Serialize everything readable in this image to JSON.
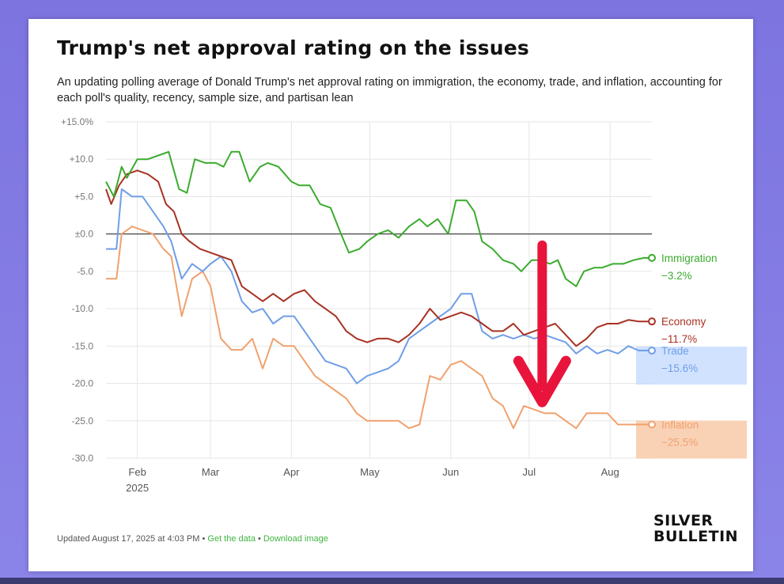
{
  "chart_data": {
    "type": "line",
    "title": "Trump's net approval rating on the issues",
    "subtitle": "An updating polling average of Donald Trump's net approval rating on immigration, the economy, trade, and inflation, accounting for each poll's quality, recency, sample size, and partisan lean",
    "ylim": [
      -30,
      15
    ],
    "y_ticks": [
      15,
      10,
      5,
      0,
      -5,
      -10,
      -15,
      -20,
      -25,
      -30
    ],
    "y_tick_labels": [
      "+15.0%",
      "+10.0",
      "+5.0",
      "±0.0",
      "-5.0",
      "-10.0",
      "-15.0",
      "-20.0",
      "-25.0",
      "-30.0"
    ],
    "x_ticks": [
      {
        "date": "2025-02-01",
        "label": "Feb",
        "sublabel": "2025"
      },
      {
        "date": "2025-03-01",
        "label": "Mar",
        "sublabel": ""
      },
      {
        "date": "2025-04-01",
        "label": "Apr",
        "sublabel": ""
      },
      {
        "date": "2025-05-01",
        "label": "May",
        "sublabel": ""
      },
      {
        "date": "2025-06-01",
        "label": "Jun",
        "sublabel": ""
      },
      {
        "date": "2025-07-01",
        "label": "Jul",
        "sublabel": ""
      },
      {
        "date": "2025-08-01",
        "label": "Aug",
        "sublabel": ""
      }
    ],
    "x_range": [
      "2025-01-20",
      "2025-08-17"
    ],
    "grid": true,
    "series": [
      {
        "name": "Immigration",
        "end_label": "Immigration",
        "end_value": "−3.2%",
        "color": "#3bab2e",
        "highlight": "",
        "points": [
          [
            "2025-01-20",
            7
          ],
          [
            "2025-01-23",
            5
          ],
          [
            "2025-01-26",
            9
          ],
          [
            "2025-01-28",
            7.5
          ],
          [
            "2025-02-01",
            10
          ],
          [
            "2025-02-05",
            10
          ],
          [
            "2025-02-09",
            10.5
          ],
          [
            "2025-02-13",
            11
          ],
          [
            "2025-02-17",
            6
          ],
          [
            "2025-02-20",
            5.5
          ],
          [
            "2025-02-23",
            10
          ],
          [
            "2025-02-27",
            9.5
          ],
          [
            "2025-03-03",
            9.5
          ],
          [
            "2025-03-06",
            9
          ],
          [
            "2025-03-09",
            11
          ],
          [
            "2025-03-12",
            11
          ],
          [
            "2025-03-16",
            7
          ],
          [
            "2025-03-20",
            9
          ],
          [
            "2025-03-23",
            9.5
          ],
          [
            "2025-03-27",
            9
          ],
          [
            "2025-04-01",
            7
          ],
          [
            "2025-04-04",
            6.5
          ],
          [
            "2025-04-08",
            6.5
          ],
          [
            "2025-04-12",
            4
          ],
          [
            "2025-04-16",
            3.5
          ],
          [
            "2025-04-20",
            0
          ],
          [
            "2025-04-23",
            -2.5
          ],
          [
            "2025-04-27",
            -2
          ],
          [
            "2025-04-30",
            -1
          ],
          [
            "2025-05-04",
            0
          ],
          [
            "2025-05-08",
            0.5
          ],
          [
            "2025-05-12",
            -0.5
          ],
          [
            "2025-05-16",
            1
          ],
          [
            "2025-05-20",
            2
          ],
          [
            "2025-05-23",
            1
          ],
          [
            "2025-05-27",
            2
          ],
          [
            "2025-05-31",
            0
          ],
          [
            "2025-06-03",
            4.5
          ],
          [
            "2025-06-07",
            4.5
          ],
          [
            "2025-06-10",
            3
          ],
          [
            "2025-06-13",
            -1
          ],
          [
            "2025-06-17",
            -2
          ],
          [
            "2025-06-21",
            -3.5
          ],
          [
            "2025-06-25",
            -4
          ],
          [
            "2025-06-28",
            -5
          ],
          [
            "2025-07-02",
            -3.5
          ],
          [
            "2025-07-05",
            -3.5
          ],
          [
            "2025-07-09",
            -4
          ],
          [
            "2025-07-12",
            -3.5
          ],
          [
            "2025-07-15",
            -6
          ],
          [
            "2025-07-19",
            -7
          ],
          [
            "2025-07-22",
            -5
          ],
          [
            "2025-07-26",
            -4.5
          ],
          [
            "2025-07-29",
            -4.5
          ],
          [
            "2025-08-02",
            -4
          ],
          [
            "2025-08-06",
            -4
          ],
          [
            "2025-08-10",
            -3.5
          ],
          [
            "2025-08-14",
            -3.2
          ],
          [
            "2025-08-17",
            -3.2
          ]
        ]
      },
      {
        "name": "Economy",
        "end_label": "Economy",
        "end_value": "−11.7%",
        "color": "#a83223",
        "highlight": "",
        "points": [
          [
            "2025-01-20",
            6
          ],
          [
            "2025-01-22",
            4
          ],
          [
            "2025-01-25",
            6.5
          ],
          [
            "2025-01-28",
            8
          ],
          [
            "2025-02-01",
            8.5
          ],
          [
            "2025-02-05",
            8
          ],
          [
            "2025-02-09",
            7
          ],
          [
            "2025-02-12",
            4
          ],
          [
            "2025-02-15",
            3
          ],
          [
            "2025-02-18",
            0
          ],
          [
            "2025-02-21",
            -1
          ],
          [
            "2025-02-25",
            -2
          ],
          [
            "2025-03-01",
            -2.5
          ],
          [
            "2025-03-05",
            -3
          ],
          [
            "2025-03-09",
            -3.5
          ],
          [
            "2025-03-13",
            -7
          ],
          [
            "2025-03-17",
            -8
          ],
          [
            "2025-03-21",
            -9
          ],
          [
            "2025-03-25",
            -8
          ],
          [
            "2025-03-29",
            -9
          ],
          [
            "2025-04-02",
            -8
          ],
          [
            "2025-04-06",
            -7.5
          ],
          [
            "2025-04-10",
            -9
          ],
          [
            "2025-04-14",
            -10
          ],
          [
            "2025-04-18",
            -11
          ],
          [
            "2025-04-22",
            -13
          ],
          [
            "2025-04-26",
            -14
          ],
          [
            "2025-04-30",
            -14.5
          ],
          [
            "2025-05-04",
            -14
          ],
          [
            "2025-05-08",
            -14
          ],
          [
            "2025-05-12",
            -14.5
          ],
          [
            "2025-05-16",
            -13.5
          ],
          [
            "2025-05-20",
            -12
          ],
          [
            "2025-05-24",
            -10
          ],
          [
            "2025-05-28",
            -11.5
          ],
          [
            "2025-06-01",
            -11
          ],
          [
            "2025-06-05",
            -10.5
          ],
          [
            "2025-06-09",
            -11
          ],
          [
            "2025-06-13",
            -12
          ],
          [
            "2025-06-17",
            -13
          ],
          [
            "2025-06-21",
            -13
          ],
          [
            "2025-06-25",
            -12
          ],
          [
            "2025-06-29",
            -13.5
          ],
          [
            "2025-07-03",
            -13
          ],
          [
            "2025-07-07",
            -12.5
          ],
          [
            "2025-07-11",
            -12
          ],
          [
            "2025-07-15",
            -13.5
          ],
          [
            "2025-07-19",
            -15
          ],
          [
            "2025-07-23",
            -14
          ],
          [
            "2025-07-27",
            -12.5
          ],
          [
            "2025-07-31",
            -12
          ],
          [
            "2025-08-04",
            -12
          ],
          [
            "2025-08-08",
            -11.5
          ],
          [
            "2025-08-12",
            -11.7
          ],
          [
            "2025-08-17",
            -11.7
          ]
        ]
      },
      {
        "name": "Trade",
        "end_label": "Trade",
        "end_value": "−15.6%",
        "color": "#6f9ee6",
        "highlight": "#c6dbff",
        "points": [
          [
            "2025-01-20",
            -2
          ],
          [
            "2025-01-24",
            -2
          ],
          [
            "2025-01-26",
            6
          ],
          [
            "2025-01-30",
            5
          ],
          [
            "2025-02-03",
            5
          ],
          [
            "2025-02-07",
            3
          ],
          [
            "2025-02-11",
            1
          ],
          [
            "2025-02-14",
            -1
          ],
          [
            "2025-02-18",
            -6
          ],
          [
            "2025-02-22",
            -4
          ],
          [
            "2025-02-26",
            -5
          ],
          [
            "2025-03-01",
            -4
          ],
          [
            "2025-03-05",
            -3
          ],
          [
            "2025-03-09",
            -5
          ],
          [
            "2025-03-13",
            -9
          ],
          [
            "2025-03-17",
            -10.5
          ],
          [
            "2025-03-21",
            -10
          ],
          [
            "2025-03-25",
            -12
          ],
          [
            "2025-03-29",
            -11
          ],
          [
            "2025-04-02",
            -11
          ],
          [
            "2025-04-06",
            -13
          ],
          [
            "2025-04-10",
            -15
          ],
          [
            "2025-04-14",
            -17
          ],
          [
            "2025-04-18",
            -17.5
          ],
          [
            "2025-04-22",
            -18
          ],
          [
            "2025-04-26",
            -20
          ],
          [
            "2025-04-30",
            -19
          ],
          [
            "2025-05-04",
            -18.5
          ],
          [
            "2025-05-08",
            -18
          ],
          [
            "2025-05-12",
            -17
          ],
          [
            "2025-05-16",
            -14
          ],
          [
            "2025-05-20",
            -13
          ],
          [
            "2025-05-24",
            -12
          ],
          [
            "2025-05-28",
            -11
          ],
          [
            "2025-06-01",
            -10
          ],
          [
            "2025-06-05",
            -8
          ],
          [
            "2025-06-09",
            -8
          ],
          [
            "2025-06-13",
            -13
          ],
          [
            "2025-06-17",
            -14
          ],
          [
            "2025-06-21",
            -13.5
          ],
          [
            "2025-06-25",
            -14
          ],
          [
            "2025-06-29",
            -13.5
          ],
          [
            "2025-07-03",
            -14
          ],
          [
            "2025-07-07",
            -13.5
          ],
          [
            "2025-07-11",
            -14
          ],
          [
            "2025-07-15",
            -14.5
          ],
          [
            "2025-07-19",
            -16
          ],
          [
            "2025-07-23",
            -15
          ],
          [
            "2025-07-27",
            -16
          ],
          [
            "2025-07-31",
            -15.5
          ],
          [
            "2025-08-04",
            -16
          ],
          [
            "2025-08-08",
            -15
          ],
          [
            "2025-08-12",
            -15.6
          ],
          [
            "2025-08-17",
            -15.6
          ]
        ]
      },
      {
        "name": "Inflation",
        "end_label": "Inflation",
        "end_value": "−25.5%",
        "color": "#f0a16d",
        "highlight": "#f7c7a4",
        "points": [
          [
            "2025-01-20",
            -6
          ],
          [
            "2025-01-24",
            -6
          ],
          [
            "2025-01-26",
            0
          ],
          [
            "2025-01-30",
            1
          ],
          [
            "2025-02-03",
            0.5
          ],
          [
            "2025-02-07",
            0
          ],
          [
            "2025-02-11",
            -2
          ],
          [
            "2025-02-14",
            -3
          ],
          [
            "2025-02-18",
            -11
          ],
          [
            "2025-02-22",
            -6
          ],
          [
            "2025-02-26",
            -5
          ],
          [
            "2025-03-01",
            -7
          ],
          [
            "2025-03-05",
            -14
          ],
          [
            "2025-03-09",
            -15.5
          ],
          [
            "2025-03-13",
            -15.5
          ],
          [
            "2025-03-17",
            -14
          ],
          [
            "2025-03-21",
            -18
          ],
          [
            "2025-03-25",
            -14
          ],
          [
            "2025-03-29",
            -15
          ],
          [
            "2025-04-02",
            -15
          ],
          [
            "2025-04-06",
            -17
          ],
          [
            "2025-04-10",
            -19
          ],
          [
            "2025-04-14",
            -20
          ],
          [
            "2025-04-18",
            -21
          ],
          [
            "2025-04-22",
            -22
          ],
          [
            "2025-04-26",
            -24
          ],
          [
            "2025-04-30",
            -25
          ],
          [
            "2025-05-04",
            -25
          ],
          [
            "2025-05-08",
            -25
          ],
          [
            "2025-05-12",
            -25
          ],
          [
            "2025-05-16",
            -26
          ],
          [
            "2025-05-20",
            -25.5
          ],
          [
            "2025-05-24",
            -19
          ],
          [
            "2025-05-28",
            -19.5
          ],
          [
            "2025-06-01",
            -17.5
          ],
          [
            "2025-06-05",
            -17
          ],
          [
            "2025-06-09",
            -18
          ],
          [
            "2025-06-13",
            -19
          ],
          [
            "2025-06-17",
            -22
          ],
          [
            "2025-06-21",
            -23
          ],
          [
            "2025-06-25",
            -26
          ],
          [
            "2025-06-29",
            -23
          ],
          [
            "2025-07-03",
            -23.5
          ],
          [
            "2025-07-07",
            -24
          ],
          [
            "2025-07-11",
            -24
          ],
          [
            "2025-07-15",
            -25
          ],
          [
            "2025-07-19",
            -26
          ],
          [
            "2025-07-23",
            -24
          ],
          [
            "2025-07-27",
            -24
          ],
          [
            "2025-07-31",
            -24
          ],
          [
            "2025-08-04",
            -25.5
          ],
          [
            "2025-08-08",
            -25.5
          ],
          [
            "2025-08-12",
            -25.5
          ],
          [
            "2025-08-17",
            -25.5
          ]
        ]
      }
    ],
    "annotation": {
      "type": "arrow",
      "direction": "down",
      "color": "#e8143c",
      "from": [
        "2025-07-06",
        -1.5
      ],
      "to": [
        "2025-07-06",
        -22.5
      ]
    }
  },
  "footer": {
    "updated": "Updated August 17, 2025 at 4:03 PM",
    "separator": " • ",
    "get_data": "Get the data",
    "download": "Download image"
  },
  "logo": {
    "line1": "SILVER",
    "line2": "BULLETIN"
  }
}
